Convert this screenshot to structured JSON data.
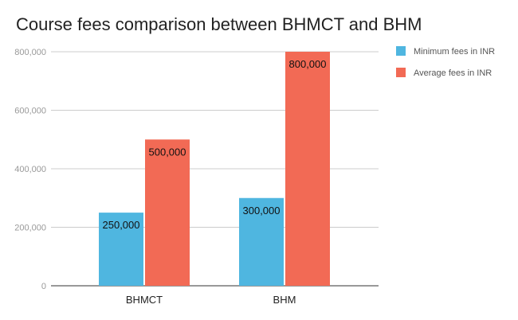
{
  "chart_data": {
    "type": "bar",
    "title": "Course fees comparison between BHMCT and BHM",
    "categories": [
      "BHMCT",
      "BHM"
    ],
    "series": [
      {
        "name": "Minimum fees in INR",
        "values": [
          250000,
          300000
        ],
        "labels": [
          "250,000",
          "300,000"
        ],
        "color": "#4fb6e0"
      },
      {
        "name": "Average fees in INR",
        "values": [
          500000,
          800000
        ],
        "labels": [
          "500,000",
          "800,000"
        ],
        "color": "#f26a55"
      }
    ],
    "yticks": [
      0,
      200000,
      400000,
      600000,
      800000
    ],
    "ytick_labels": [
      "0",
      "200,000",
      "400,000",
      "600,000",
      "800,000"
    ],
    "ylim": [
      0,
      800000
    ],
    "grid": true,
    "legend_position": "right",
    "xlabel": "",
    "ylabel": ""
  }
}
